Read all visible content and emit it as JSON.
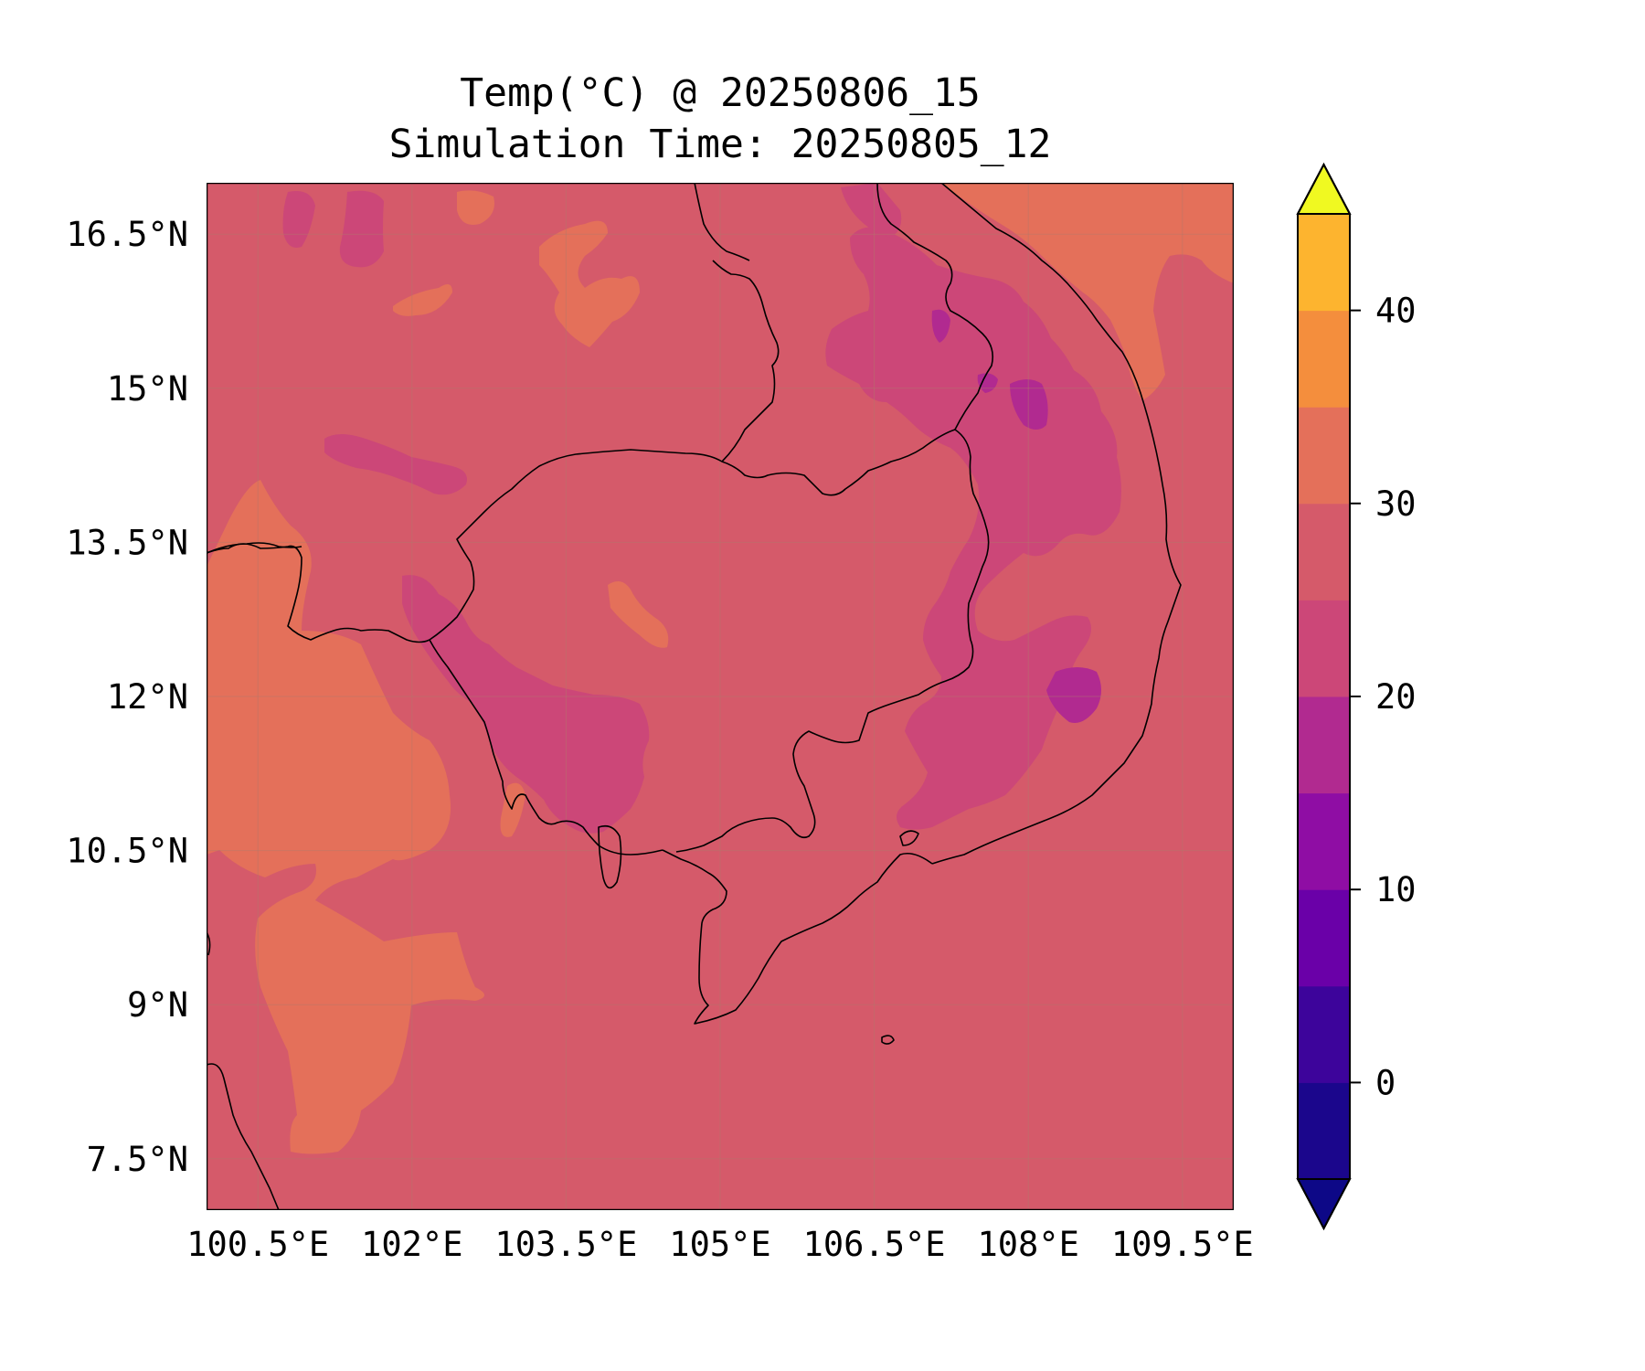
{
  "title": {
    "line1": "Temp(°C) @ 20250806_15",
    "line2": "Simulation Time: 20250805_12"
  },
  "map": {
    "lon_range": [
      100.0,
      110.0
    ],
    "lat_range": [
      7.0,
      17.0
    ],
    "x_ticks": [
      {
        "value": 100.5,
        "label": "100.5°E"
      },
      {
        "value": 102.0,
        "label": "102°E"
      },
      {
        "value": 103.5,
        "label": "103.5°E"
      },
      {
        "value": 105.0,
        "label": "105°E"
      },
      {
        "value": 106.5,
        "label": "106.5°E"
      },
      {
        "value": 108.0,
        "label": "108°E"
      },
      {
        "value": 109.5,
        "label": "109.5°E"
      }
    ],
    "y_ticks": [
      {
        "value": 16.5,
        "label": "16.5°N"
      },
      {
        "value": 15.0,
        "label": "15°N"
      },
      {
        "value": 13.5,
        "label": "13.5°N"
      },
      {
        "value": 12.0,
        "label": "12°N"
      },
      {
        "value": 10.5,
        "label": "10.5°N"
      },
      {
        "value": 9.0,
        "label": "9°N"
      },
      {
        "value": 7.5,
        "label": "7.5°N"
      }
    ],
    "gridlines": true
  },
  "colorbar": {
    "colormap": "plasma",
    "extend": "both",
    "min": -5,
    "max": 45,
    "step": 5,
    "ticks": [
      {
        "value": 0,
        "label": "0"
      },
      {
        "value": 10,
        "label": "10"
      },
      {
        "value": 20,
        "label": "20"
      },
      {
        "value": 30,
        "label": "30"
      },
      {
        "value": 40,
        "label": "40"
      }
    ],
    "colors": [
      "#1b068c",
      "#3d049b",
      "#6a00a8",
      "#8f0da4",
      "#b12a90",
      "#cc4778",
      "#d55a6a",
      "#e4705a",
      "#f48e3d",
      "#fdb42f",
      "#f0e423"
    ],
    "under_color": "#0d0887",
    "over_color": "#f0f921"
  },
  "regions": {
    "background_level": 27.5,
    "warm_level": 32.5,
    "cool_level": 22.5,
    "cold_level": 17.5
  }
}
